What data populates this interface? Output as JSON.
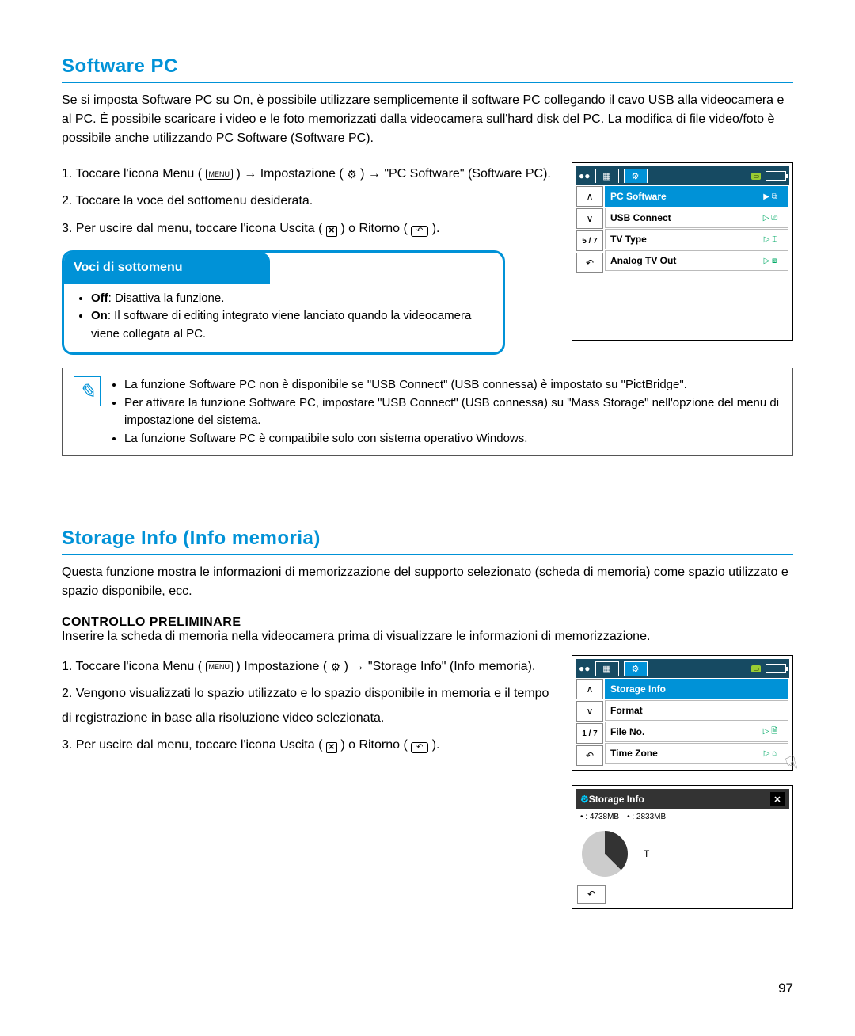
{
  "page_number": "97",
  "section1": {
    "title": "Software PC",
    "intro": "Se si imposta Software PC su On, è possibile utilizzare semplicemente il software PC collegando il cavo USB alla videocamera e al PC. È possibile scaricare i video e le foto memorizzati dalla videocamera sull'hard disk del PC. La modifica di file video/foto è possibile anche utilizzando PC Software (Software PC).",
    "step1_a": "1. Toccare l'icona Menu (",
    "menu_label": "MENU",
    "step1_b": ")  →  Impostazione (",
    "step1_c": ")  →  \"PC Software\" (Software PC).",
    "step2": "2. Toccare la voce del sottomenu desiderata.",
    "step3_a": "3. Per uscire dal menu, toccare l'icona Uscita (",
    "step3_b": ") o Ritorno (",
    "step3_c": ").",
    "submenu_title": "Voci di sottomenu",
    "sub_off_b": "Off",
    "sub_off": ": Disattiva la funzione.",
    "sub_on_b": "On",
    "sub_on": ": Il software di editing integrato viene lanciato quando la videocamera viene collegata al PC.",
    "note1": "La funzione Software PC non è disponibile se \"USB Connect\" (USB connessa) è impostato su \"PictBridge\".",
    "note2": "Per attivare la funzione Software PC, impostare \"USB Connect\" (USB connessa) su \"Mass Storage\" nell'opzione del menu di impostazione del sistema.",
    "note3": "La funzione Software PC è compatibile solo con sistema operativo Windows.",
    "screen": {
      "pager": "5 / 7",
      "rows": [
        {
          "label": "PC Software",
          "val": "▶ ⧉",
          "sel": true
        },
        {
          "label": "USB Connect",
          "val": "▷ ⎚",
          "sel": false
        },
        {
          "label": "TV Type",
          "val": "▷ ⌶",
          "sel": false
        },
        {
          "label": "Analog TV Out",
          "val": "▷ ⧈",
          "sel": false
        }
      ]
    }
  },
  "section2": {
    "title": "Storage Info (Info memoria)",
    "intro": "Questa funzione mostra le informazioni di memorizzazione del supporto selezionato (scheda di memoria) come spazio utilizzato e spazio disponibile, ecc.",
    "precheck_h": "CONTROLLO PRELIMINARE",
    "precheck": "Inserire la scheda di memoria nella videocamera prima di visualizzare le informazioni di memorizzazione.",
    "step1_a": "1. Toccare l'icona Menu (",
    "step1_b": ") Impostazione (",
    "step1_c": ")  →  \"Storage Info\" (Info memoria).",
    "step2": "2. Vengono visualizzati lo spazio utilizzato e lo spazio disponibile in memoria e il tempo di registrazione in base alla risoluzione video selezionata.",
    "step3_a": "3. Per uscire dal menu, toccare l'icona Uscita (",
    "step3_b": ") o Ritorno (",
    "step3_c": ").",
    "screen": {
      "pager": "1 / 7",
      "rows": [
        {
          "label": "Storage Info",
          "val": "",
          "sel": true
        },
        {
          "label": "Format",
          "val": "",
          "sel": false
        },
        {
          "label": "File No.",
          "val": "▷ 🗎",
          "sel": false
        },
        {
          "label": "Time Zone",
          "val": "▷ ⌂",
          "sel": false
        }
      ]
    },
    "popout": {
      "title": "Storage Info",
      "used": ": 4738MB",
      "free": ": 2833MB",
      "letter": "T"
    }
  },
  "style": {
    "accent": "#0092d7",
    "header_bg": "#164a62"
  }
}
